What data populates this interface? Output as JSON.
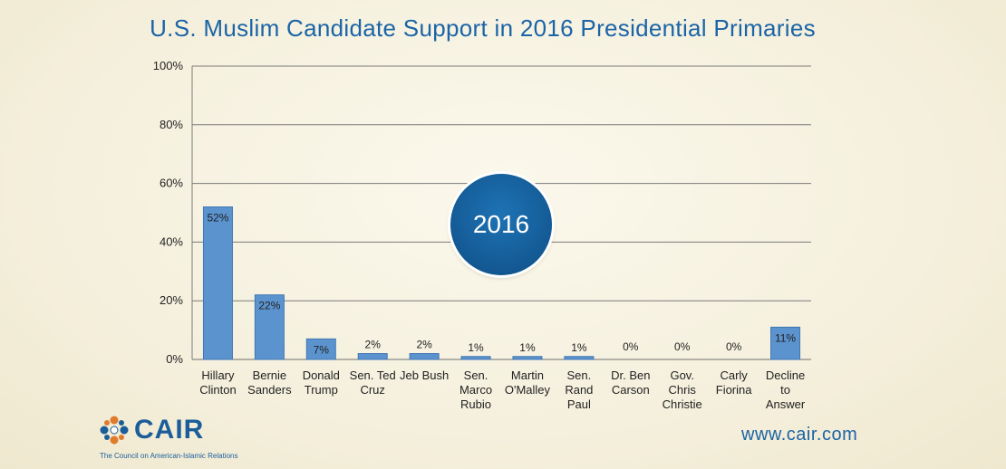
{
  "chart_data": {
    "type": "bar",
    "title": "U.S. Muslim Candidate Support in 2016 Presidential Primaries",
    "categories": [
      [
        "Hillary",
        "Clinton"
      ],
      [
        "Bernie",
        "Sanders"
      ],
      [
        "Donald",
        "Trump"
      ],
      [
        "Sen. Ted",
        "Cruz"
      ],
      [
        "Jeb Bush"
      ],
      [
        "Sen.",
        "Marco",
        "Rubio"
      ],
      [
        "Martin",
        "O'Malley"
      ],
      [
        "Sen.",
        "Rand",
        "Paul"
      ],
      [
        "Dr. Ben",
        "Carson"
      ],
      [
        "Gov.",
        "Chris",
        "Christie"
      ],
      [
        "Carly",
        "Fiorina"
      ],
      [
        "Decline",
        "to",
        "Answer"
      ]
    ],
    "values": [
      52,
      22,
      7,
      2,
      2,
      1,
      1,
      1,
      0,
      0,
      0,
      11
    ],
    "value_labels": [
      "52%",
      "22%",
      "7%",
      "2%",
      "2%",
      "1%",
      "1%",
      "1%",
      "0%",
      "0%",
      "0%",
      "11%"
    ],
    "yticks": [
      "0%",
      "20%",
      "40%",
      "60%",
      "80%",
      "100%"
    ],
    "ylim": [
      0,
      100
    ],
    "grid": true,
    "bar_color": "#5b93cf",
    "bar_edge_color": "#3f76b3"
  },
  "badge": {
    "text": "2016"
  },
  "logo": {
    "name": "CAIR",
    "tagline": "The Council on American-Islamic Relations"
  },
  "website": "www.cair.com",
  "colors": {
    "title": "#1b64a6",
    "badge": "#135994",
    "logo": "#1b5d99",
    "logo_accent": "#e07a2c"
  }
}
